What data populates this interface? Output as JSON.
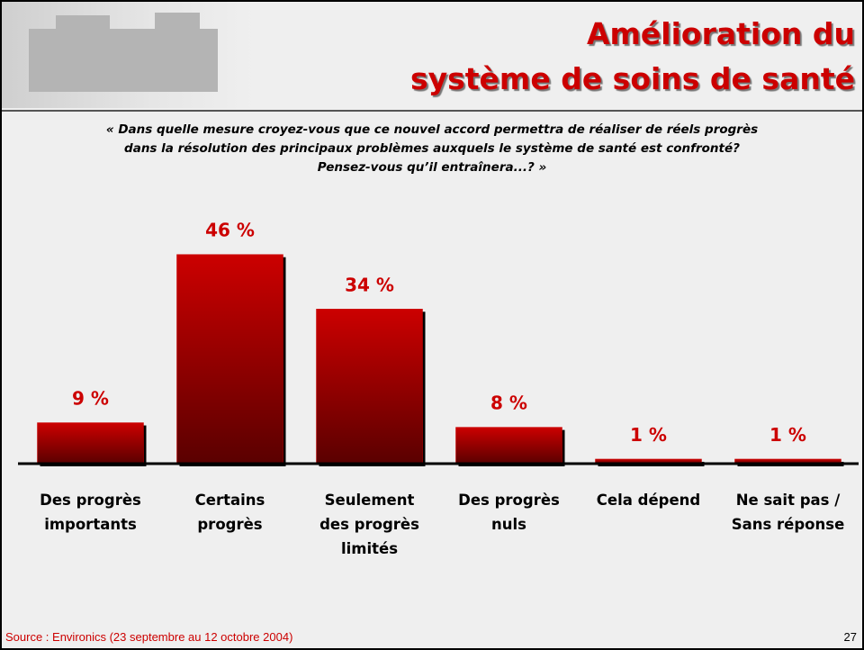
{
  "title": [
    "Amélioration du",
    "système de soins de santé"
  ],
  "question": [
    "« Dans quelle mesure croyez-vous que ce nouvel accord permettra de réaliser de réels progrès",
    "dans la résolution des principaux problèmes auxquels le système de santé est confronté?",
    "Pensez-vous qu’il entraînera...? »"
  ],
  "chart_data": {
    "type": "bar",
    "categories": [
      [
        "Des progrès",
        "importants"
      ],
      [
        "Certains",
        "progrès"
      ],
      [
        "Seulement",
        "des progrès",
        "limités"
      ],
      [
        "Des progrès",
        "nuls"
      ],
      [
        "Cela dépend"
      ],
      [
        "Ne sait pas /",
        "Sans réponse"
      ]
    ],
    "values": [
      9,
      46,
      34,
      8,
      1,
      1
    ],
    "value_labels": [
      "9 %",
      "46 %",
      "34 %",
      "8 %",
      "1 %",
      "1 %"
    ],
    "color": "#cc0000"
  },
  "source": "Source : Environics (23 septembre au 12 octobre 2004)",
  "page_number": "27"
}
